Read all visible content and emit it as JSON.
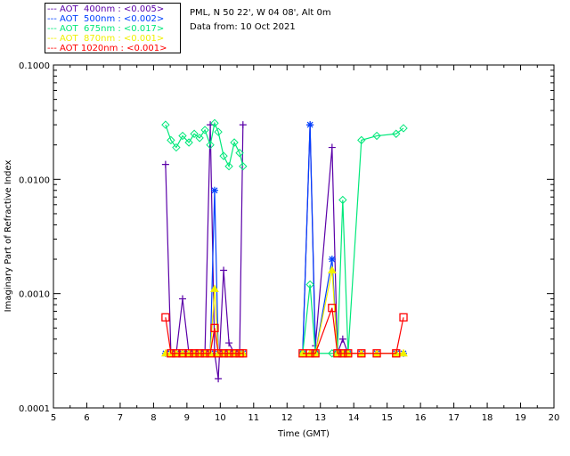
{
  "header": {
    "location": "PML, N 50 22', W 04 08', Alt 0m",
    "date": "Data from: 10 Oct 2021"
  },
  "chart_data": {
    "type": "line",
    "xlabel": "Time (GMT)",
    "ylabel": "Imaginary Part of Refractive Index",
    "xlim": [
      5,
      20
    ],
    "ylim": [
      0.0001,
      0.1
    ],
    "yscale": "log",
    "xticks": [
      "5",
      "6",
      "7",
      "8",
      "9",
      "10",
      "11",
      "12",
      "13",
      "14",
      "15",
      "16",
      "17",
      "18",
      "19",
      "20"
    ],
    "yticks": [
      "0.1000",
      "0.0100",
      "0.0010",
      "0.0001"
    ],
    "legend_position": "top-left",
    "sessions": [
      {
        "x": [
          8.36,
          8.52,
          8.68,
          8.87,
          9.06,
          9.22,
          9.38,
          9.54,
          9.7,
          9.83,
          9.94,
          10.1,
          10.26,
          10.42,
          10.58,
          10.68
        ],
        "series": [
          {
            "name": "AOT  400nm : <0.005>",
            "color": "#5a00a8",
            "marker": "plus",
            "values": [
              0.0135,
              0.0003,
              0.0003,
              0.0009,
              0.0003,
              0.0003,
              0.0003,
              0.0003,
              0.03,
              0.0003,
              0.00018,
              0.0016,
              0.00037,
              0.0003,
              0.0003,
              0.03
            ]
          },
          {
            "name": "AOT  500nm : <0.002>",
            "color": "#0040ff",
            "marker": "star",
            "values": [
              0.0003,
              0.0003,
              0.0003,
              0.0003,
              0.0003,
              0.0003,
              0.0003,
              0.0003,
              0.0003,
              0.008,
              0.0003,
              0.0003,
              0.0003,
              0.0003,
              0.0003,
              0.0003
            ]
          },
          {
            "name": "AOT  675nm : <0.017>",
            "color": "#00e87a",
            "marker": "diamond",
            "values": [
              0.03,
              0.022,
              0.019,
              0.024,
              0.021,
              0.025,
              0.023,
              0.027,
              0.02,
              0.031,
              0.026,
              0.016,
              0.013,
              0.021,
              0.017,
              0.013
            ]
          },
          {
            "name": "AOT  870nm : <0.001>",
            "color": "#f0f000",
            "marker": "triangle",
            "values": [
              0.0003,
              0.0003,
              0.0003,
              0.0003,
              0.0003,
              0.0003,
              0.0003,
              0.0003,
              0.0003,
              0.0011,
              0.0003,
              0.0003,
              0.0003,
              0.0003,
              0.0003,
              0.0003
            ]
          },
          {
            "name": "AOT 1020nm : <0.001>",
            "color": "#ff0000",
            "marker": "square",
            "values": [
              0.00062,
              0.0003,
              0.0003,
              0.0003,
              0.0003,
              0.0003,
              0.0003,
              0.0003,
              0.0003,
              0.0005,
              0.0003,
              0.0003,
              0.0003,
              0.0003,
              0.0003,
              0.0003
            ]
          }
        ]
      },
      {
        "x": [
          12.47,
          12.69,
          12.85,
          13.35,
          13.51,
          13.67,
          13.83,
          14.23,
          14.69,
          15.27,
          15.49
        ],
        "series": [
          {
            "name": "AOT  400nm : <0.005>",
            "color": "#5a00a8",
            "marker": "plus",
            "values": [
              0.0003,
              0.03,
              0.00035,
              0.019,
              0.0003,
              0.0004,
              0.0003,
              null,
              null,
              null,
              null
            ]
          },
          {
            "name": "AOT  500nm : <0.002>",
            "color": "#0040ff",
            "marker": "star",
            "values": [
              0.0003,
              0.03,
              0.0003,
              0.002,
              0.0003,
              0.0003,
              0.0003,
              0.0003,
              0.0003,
              0.0003,
              0.0003
            ]
          },
          {
            "name": "AOT  675nm : <0.017>",
            "color": "#00e87a",
            "marker": "diamond",
            "values": [
              0.0003,
              0.0012,
              0.0003,
              0.0003,
              0.0003,
              0.0066,
              0.0003,
              0.022,
              0.024,
              0.025,
              0.028
            ]
          },
          {
            "name": "AOT  870nm : <0.001>",
            "color": "#f0f000",
            "marker": "triangle",
            "values": [
              0.0003,
              0.0003,
              0.0003,
              0.0016,
              0.0003,
              0.0003,
              0.0003,
              0.0003,
              0.0003,
              0.0003,
              0.0003
            ]
          },
          {
            "name": "AOT 1020nm : <0.001>",
            "color": "#ff0000",
            "marker": "square",
            "values": [
              0.0003,
              0.0003,
              0.0003,
              0.00075,
              0.0003,
              0.0003,
              0.0003,
              0.0003,
              0.0003,
              0.0003,
              0.00062
            ]
          }
        ]
      }
    ],
    "legend": [
      {
        "label": "AOT  400nm : <0.005>",
        "color": "#5a00a8"
      },
      {
        "label": "AOT  500nm : <0.002>",
        "color": "#0040ff"
      },
      {
        "label": "AOT  675nm : <0.017>",
        "color": "#00e87a"
      },
      {
        "label": "AOT  870nm : <0.001>",
        "color": "#f0f000"
      },
      {
        "label": "AOT 1020nm : <0.001>",
        "color": "#ff0000"
      }
    ]
  }
}
